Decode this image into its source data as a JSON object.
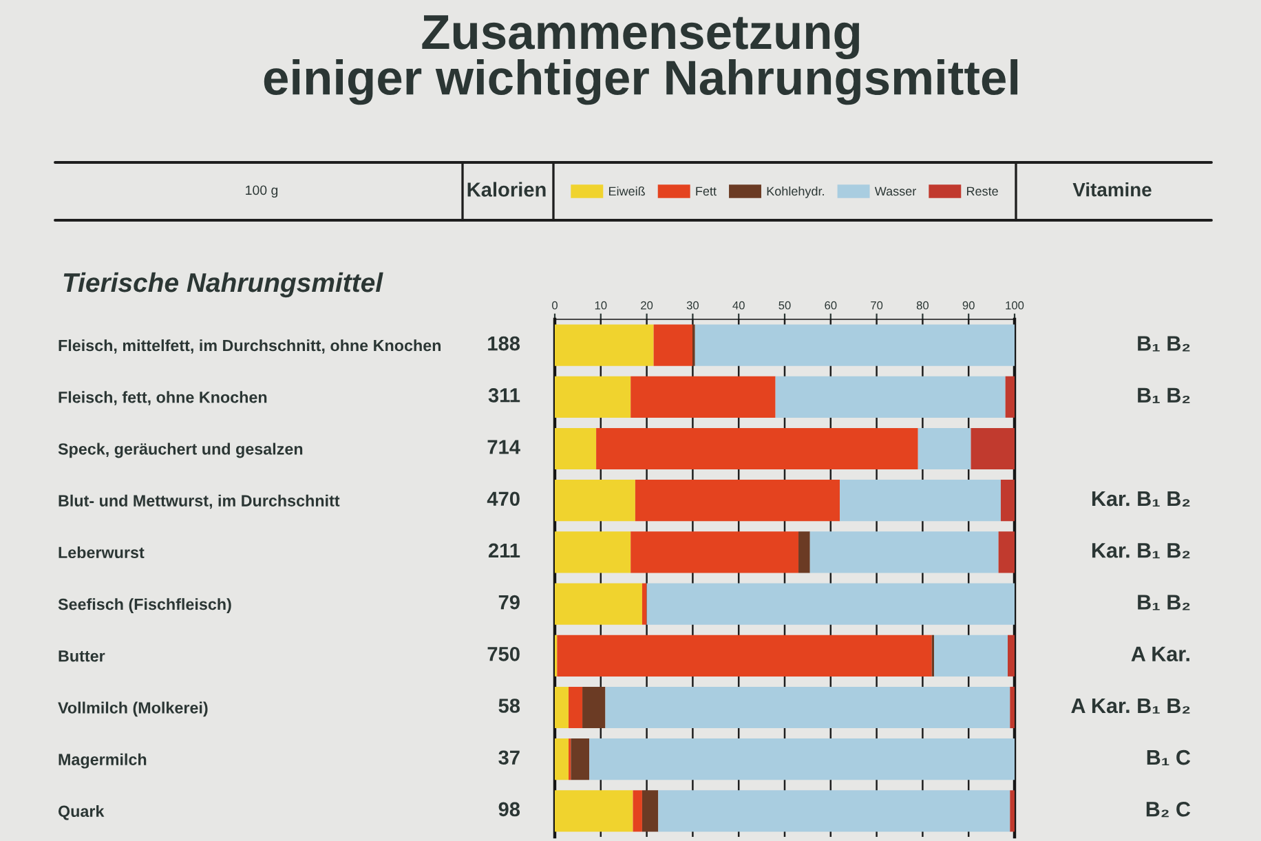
{
  "chart_data": {
    "type": "bar",
    "orientation": "horizontal",
    "stacked": true,
    "title": "Zusammensetzung\neiniger wichtiger Nahrungsmittel",
    "subtitle": "Tierische Nahrungsmittel",
    "categories": [
      "Fleisch, mittelfett, im Durchschnitt, ohne Knochen",
      "Fleisch, fett, ohne Knochen",
      "Speck, geräuchert und gesalzen",
      "Blut- und Mettwurst, im Durchschnitt",
      "Leberwurst",
      "Seefisch (Fischfleisch)",
      "Butter",
      "Vollmilch (Molkerei)",
      "Magermilch",
      "Quark"
    ],
    "y2_categories": [
      "B₁ B₂",
      "B₁ B₂",
      null,
      "Kar. B₁ B₂",
      "Kar. B₁ B₂",
      "B₁ B₂",
      "A Kar.",
      "A Kar. B₁ B₂",
      "B₁ C",
      "B₂ C"
    ],
    "series": [
      {
        "name": "Eiweiß",
        "color": "#f0d32e",
        "values": [
          21.5,
          16.5,
          9,
          17.5,
          16.5,
          19,
          0.5,
          3,
          3,
          17
        ]
      },
      {
        "name": "Fett",
        "color": "#e4431f",
        "values": [
          8.5,
          31.5,
          70,
          44.5,
          36.5,
          1,
          81.5,
          3,
          0.5,
          2
        ]
      },
      {
        "name": "Kohlehydr.",
        "color": "#6b3b24",
        "values": [
          0.5,
          null,
          null,
          null,
          2.5,
          null,
          0.5,
          5,
          4,
          3.5
        ]
      },
      {
        "name": "Wasser",
        "color": "#a9cde0",
        "values": [
          69.5,
          50,
          11.5,
          35,
          41,
          80,
          16,
          88,
          92.5,
          76.5
        ]
      },
      {
        "name": "Reste",
        "color": "#c13a2e",
        "values": [
          null,
          2,
          9.5,
          3,
          3.5,
          null,
          1.5,
          1,
          null,
          1
        ]
      }
    ],
    "xlim": [
      0,
      100
    ],
    "xticks": [
      0,
      10,
      20,
      30,
      40,
      50,
      60,
      70,
      80,
      90,
      100
    ],
    "grid": "x",
    "legend": "top",
    "annotations": [
      "100 g",
      "Kalorien",
      "Vitamine",
      "188",
      "311",
      "714",
      "470",
      "211",
      "79",
      "750",
      "58",
      "37",
      "98"
    ]
  }
}
